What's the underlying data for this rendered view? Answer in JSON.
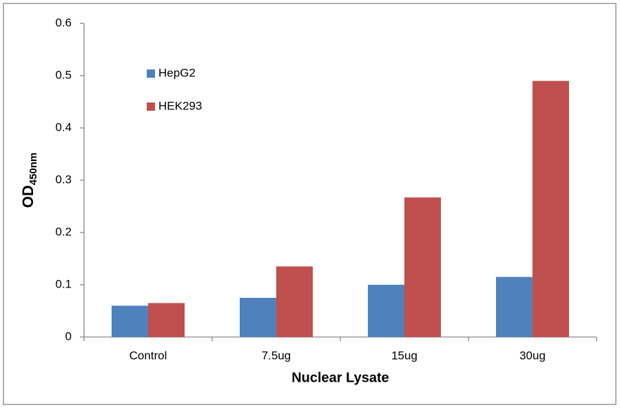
{
  "chart_data": {
    "type": "bar",
    "x_label": "Nuclear Lysate",
    "y_label": "OD",
    "y_label_subscript": "450nm",
    "categories": [
      "Control",
      "7.5ug",
      "15ug",
      "30ug"
    ],
    "series": [
      {
        "name": "HepG2",
        "color": "#4f81bd",
        "values": [
          0.06,
          0.075,
          0.1,
          0.115
        ]
      },
      {
        "name": "HEK293",
        "color": "#c0504d",
        "values": [
          0.065,
          0.135,
          0.267,
          0.49
        ]
      }
    ],
    "ylim": [
      0,
      0.6
    ],
    "yticks": [
      0,
      0.1,
      0.2,
      0.3,
      0.4,
      0.5,
      0.6
    ],
    "grid": false,
    "legend": "top-left"
  }
}
